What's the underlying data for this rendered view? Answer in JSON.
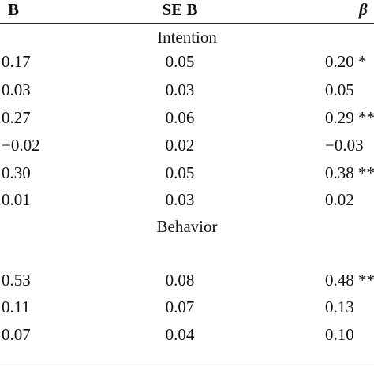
{
  "table": {
    "header": [
      "B",
      "SE B",
      "β"
    ],
    "sections": [
      {
        "title": "Intention",
        "rows": [
          [
            "0.17",
            "0.05",
            "0.20 *"
          ],
          [
            "0.03",
            "0.03",
            "0.05"
          ],
          [
            "0.27",
            "0.06",
            "0.29 **"
          ],
          [
            "−0.02",
            "0.02",
            "−0.03"
          ],
          [
            "0.30",
            "0.05",
            "0.38 **"
          ],
          [
            "0.01",
            "0.03",
            "0.02"
          ]
        ]
      },
      {
        "title": "Behavior",
        "rows": [
          [
            "0.53",
            "0.08",
            "0.48 **"
          ],
          [
            "0.11",
            "0.07",
            "0.13"
          ],
          [
            "0.07",
            "0.04",
            "0.10"
          ]
        ]
      }
    ]
  }
}
